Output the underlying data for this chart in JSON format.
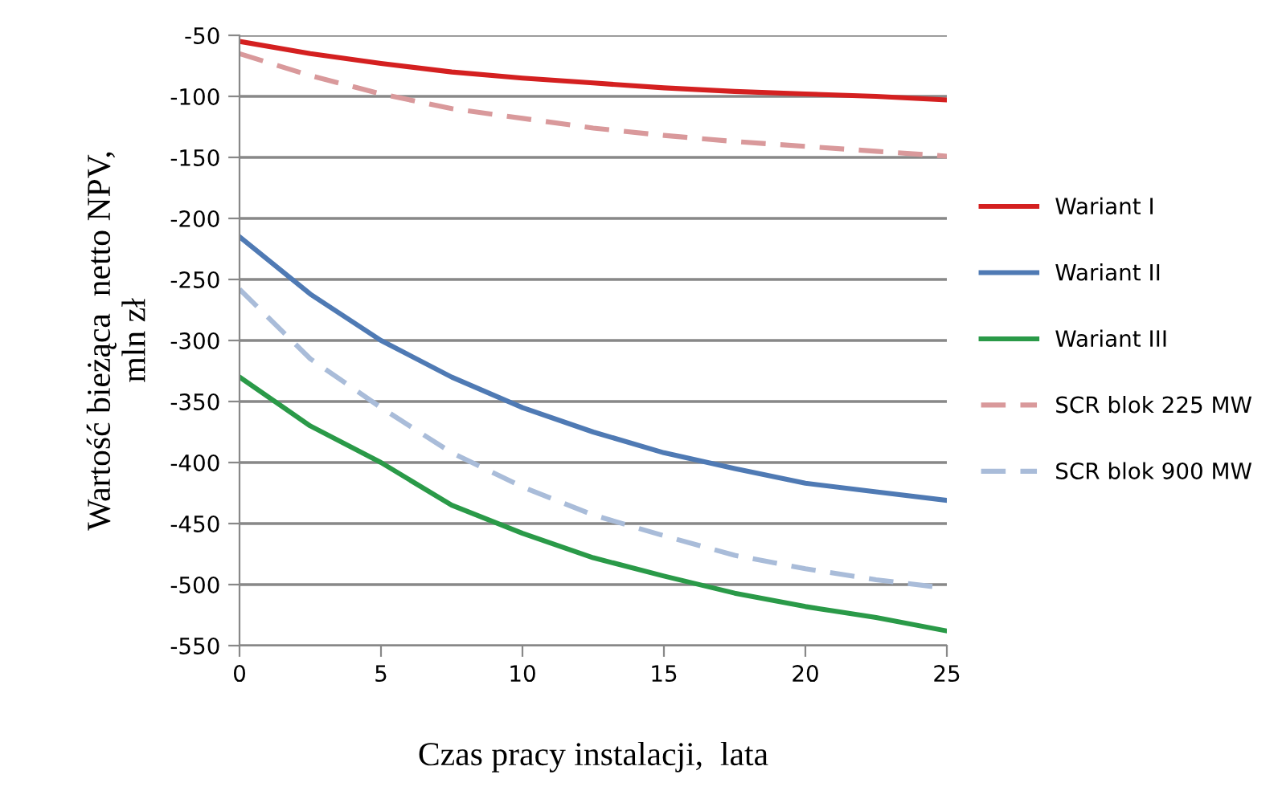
{
  "chart_data": {
    "type": "line",
    "xlabel": "Czas pracy instalacji,  lata",
    "ylabel": "Wartość bieżąca  netto NPV,\nmln zł",
    "x": [
      0,
      2.5,
      5,
      7.5,
      10,
      12.5,
      15,
      17.5,
      20,
      22.5,
      25
    ],
    "series": [
      {
        "name": "Wariant I",
        "color": "#d42020",
        "line_style": "solid",
        "values": [
          -55,
          -65,
          -73,
          -80,
          -85,
          -89,
          -93,
          -96,
          -98,
          -100,
          -103
        ]
      },
      {
        "name": "Wariant II",
        "color": "#4f7ab4",
        "line_style": "solid",
        "values": [
          -215,
          -262,
          -300,
          -330,
          -355,
          -375,
          -392,
          -405,
          -417,
          -424,
          -431
        ]
      },
      {
        "name": "Wariant III",
        "color": "#2a9a48",
        "line_style": "solid",
        "values": [
          -330,
          -370,
          -400,
          -435,
          -458,
          -478,
          -493,
          -507,
          -518,
          -527,
          -538
        ]
      },
      {
        "name": "SCR blok 225 MW",
        "color": "#d9999b",
        "line_style": "dashed",
        "values": [
          -65,
          -83,
          -98,
          -110,
          -118,
          -126,
          -132,
          -137,
          -141,
          -145,
          -149
        ]
      },
      {
        "name": "SCR blok 900 MW",
        "color": "#a9bcd9",
        "line_style": "dashed",
        "values": [
          -258,
          -315,
          -355,
          -392,
          -420,
          -443,
          -460,
          -476,
          -487,
          -496,
          -503
        ]
      }
    ],
    "xlim": [
      0,
      25
    ],
    "xticks": [
      0,
      5,
      10,
      15,
      20,
      25
    ],
    "ylim": [
      -550,
      -50
    ],
    "yticks": [
      -550,
      -500,
      -450,
      -400,
      -350,
      -300,
      -250,
      -200,
      -150,
      -100,
      -50
    ],
    "grid": "y",
    "legend": "right"
  }
}
